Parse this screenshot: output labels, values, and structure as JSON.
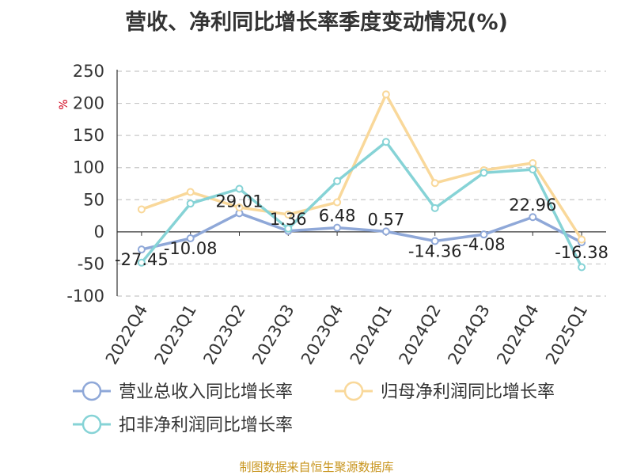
{
  "chart_data": {
    "type": "line",
    "title": "营收、净利同比增长率季度变动情况(%)",
    "ylabel": "%",
    "ylim": [
      -100,
      250
    ],
    "yticks": [
      -100,
      -50,
      0,
      50,
      100,
      150,
      200,
      250
    ],
    "grid": true,
    "legend_position": "bottom",
    "categories": [
      "2022Q4",
      "2023Q1",
      "2023Q2",
      "2023Q3",
      "2023Q4",
      "2024Q1",
      "2024Q2",
      "2024Q3",
      "2024Q4",
      "2025Q1"
    ],
    "series": [
      {
        "name": "营业总收入同比增长率",
        "color": "#8fa8d8",
        "values": [
          -27.45,
          -10.08,
          29.01,
          1.36,
          6.48,
          0.57,
          -14.36,
          -4.08,
          22.96,
          -16.38
        ],
        "labels": [
          "-27.45",
          "-10.08",
          "29.01",
          "1.36",
          "6.48",
          "0.57",
          "-14.36",
          "-4.08",
          "22.96",
          "-16.38"
        ]
      },
      {
        "name": "归母净利润同比增长率",
        "color": "#f9d89a",
        "values": [
          35,
          62,
          38,
          27,
          46,
          214,
          76,
          96,
          107,
          -12
        ]
      },
      {
        "name": "扣非净利润同比增长率",
        "color": "#86d3d6",
        "values": [
          -48,
          44,
          67,
          5,
          79,
          140,
          37,
          92,
          97,
          -55
        ]
      }
    ],
    "source": "制图数据来自恒生聚源数据库"
  }
}
